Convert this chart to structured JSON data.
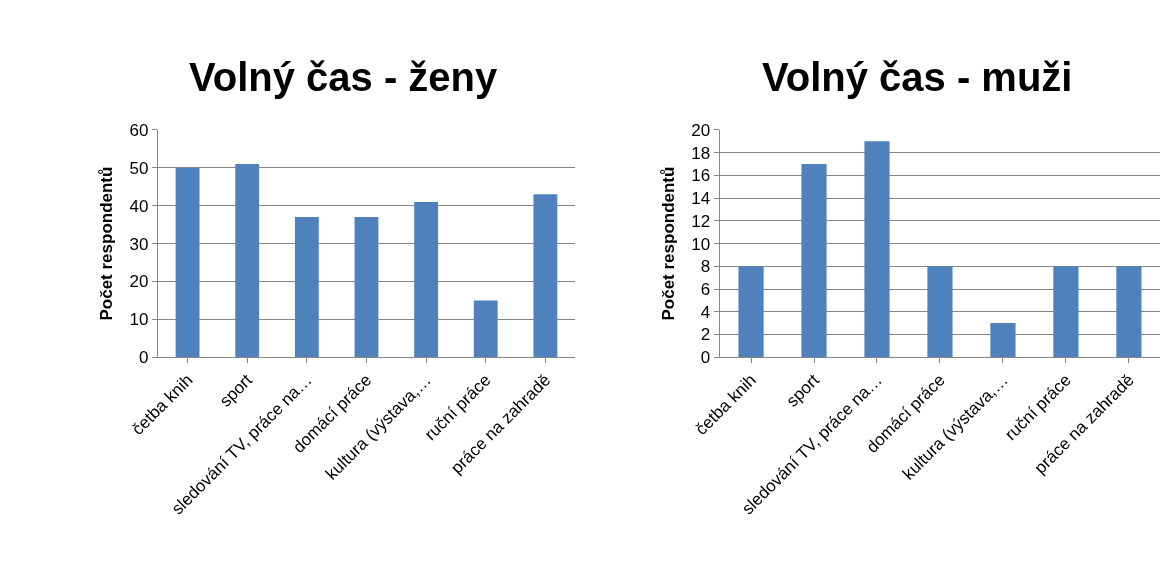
{
  "chart_data": [
    {
      "type": "bar",
      "title": "Volný čas - ženy",
      "ylabel": "Počet respondentů",
      "categories": [
        "četba knih",
        "sport",
        "sledování TV, práce na…",
        "domácí práce",
        "kultura (výstava,…",
        "ruční práce",
        "práce na zahradě"
      ],
      "values": [
        50,
        51,
        37,
        37,
        41,
        15,
        43
      ],
      "color": "#4f81bd",
      "ylim": [
        0,
        60
      ],
      "yticks": [
        0,
        10,
        20,
        30,
        40,
        50,
        60
      ],
      "grid": "y"
    },
    {
      "type": "bar",
      "title": "Volný čas - muži",
      "ylabel": "Počet respondentů",
      "categories": [
        "četba knih",
        "sport",
        "sledování TV, práce na…",
        "domácí práce",
        "kultura (výstava,…",
        "ruční práce",
        "práce na zahradě"
      ],
      "values": [
        8,
        17,
        19,
        8,
        3,
        8,
        8
      ],
      "color": "#4f81bd",
      "ylim": [
        0,
        20
      ],
      "yticks": [
        0,
        2,
        4,
        6,
        8,
        10,
        12,
        14,
        16,
        18,
        20
      ],
      "grid": "y"
    }
  ]
}
